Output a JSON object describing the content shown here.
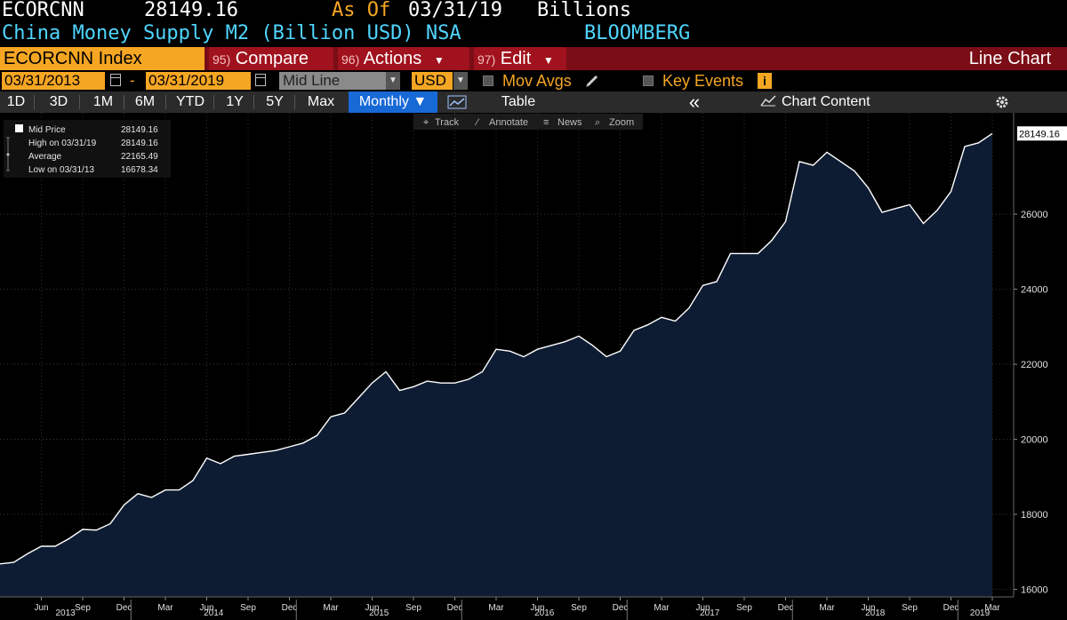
{
  "header": {
    "ticker": "ECORCNN",
    "last_value": "28149.16",
    "as_of_label": "As Of",
    "as_of_date": "03/31/19",
    "units": "Billions",
    "description": "China Money Supply M2 (Billion USD) NSA",
    "source": "BLOOMBERG"
  },
  "command_bar": {
    "security": "ECORCNN Index",
    "compare_num": "95)",
    "compare_label": "Compare",
    "actions_num": "96)",
    "actions_label": "Actions",
    "edit_num": "97)",
    "edit_label": "Edit",
    "view_label": "Line Chart"
  },
  "settings": {
    "start_date": "03/31/2013",
    "date_dash": "-",
    "end_date": "03/31/2019",
    "price_type": "Mid Line",
    "currency": "USD",
    "mov_avgs": "Mov Avgs",
    "key_events": "Key Events",
    "info_glyph": "i"
  },
  "range_bar": {
    "ranges": [
      "1D",
      "3D",
      "1M",
      "6M",
      "YTD",
      "1Y",
      "5Y",
      "Max"
    ],
    "frequency": "Monthly ▼",
    "table_label": "Table",
    "collapse_glyph": "«",
    "chart_content": "Chart Content"
  },
  "toolbar": {
    "track": "Track",
    "annotate": "Annotate",
    "news": "News",
    "zoom": "Zoom"
  },
  "legend": [
    {
      "label": "Mid Price",
      "value": "28149.16"
    },
    {
      "label": "High on 03/31/19",
      "value": "28149.16"
    },
    {
      "label": "Average",
      "value": "22165.49"
    },
    {
      "label": "Low on 03/31/13",
      "value": "16678.34"
    }
  ],
  "colors": {
    "accent_orange": "#f5a623",
    "header_cyan": "#4fd6ff",
    "command_red": "#7a0d15",
    "active_blue": "#1769d6",
    "area_fill": "#0e1c33",
    "line": "#ffffff"
  },
  "icons": {
    "calendar": "calendar-icon",
    "checkbox": "checkbox-icon",
    "pencil": "pencil-icon",
    "chart_line": "line-chart-icon",
    "gear": "gear-icon",
    "crosshair": "crosshair-icon",
    "magnifier": "zoom-icon"
  },
  "chart_data": {
    "type": "area",
    "title": "",
    "xlabel": "",
    "ylabel": "",
    "ylim": [
      15800,
      28700
    ],
    "yticks": [
      16000,
      18000,
      20000,
      22000,
      24000,
      26000
    ],
    "last_value_label": "28149.16",
    "x_month_labels": [
      "Jun",
      "Sep",
      "Dec",
      "Mar",
      "Jun",
      "Sep",
      "Dec",
      "Mar",
      "Jun",
      "Sep",
      "Dec",
      "Mar",
      "Jun",
      "Sep",
      "Dec",
      "Mar",
      "Jun",
      "Sep",
      "Dec",
      "Mar",
      "Jun",
      "Sep",
      "Dec",
      "Mar"
    ],
    "x_year_labels": [
      "2013",
      "2014",
      "2015",
      "2016",
      "2017",
      "2018",
      "2019"
    ],
    "grid": true,
    "x_start": "2013-03",
    "x_end": "2019-03",
    "series": [
      {
        "values": [
          16680,
          16720,
          16950,
          17150,
          17150,
          17350,
          17600,
          17580,
          17750,
          18250,
          18550,
          18450,
          18650,
          18650,
          18900,
          19500,
          19350,
          19550,
          19600,
          19650,
          19700,
          19800,
          19900,
          20100,
          20600,
          20700,
          21100,
          21500,
          21800,
          21300,
          21400,
          21550,
          21500,
          21500,
          21600,
          21800,
          22400,
          22350,
          22200,
          22400,
          22500,
          22600,
          22750,
          22500,
          22200,
          22350,
          22900,
          23050,
          23250,
          23150,
          23500,
          24100,
          24200,
          24950,
          24950,
          24950,
          25300,
          25800,
          27400,
          27300,
          27650,
          27400,
          27150,
          26700,
          26050,
          26150,
          26250,
          25750,
          26100,
          26600,
          27800,
          27900,
          28149.16
        ]
      }
    ]
  }
}
